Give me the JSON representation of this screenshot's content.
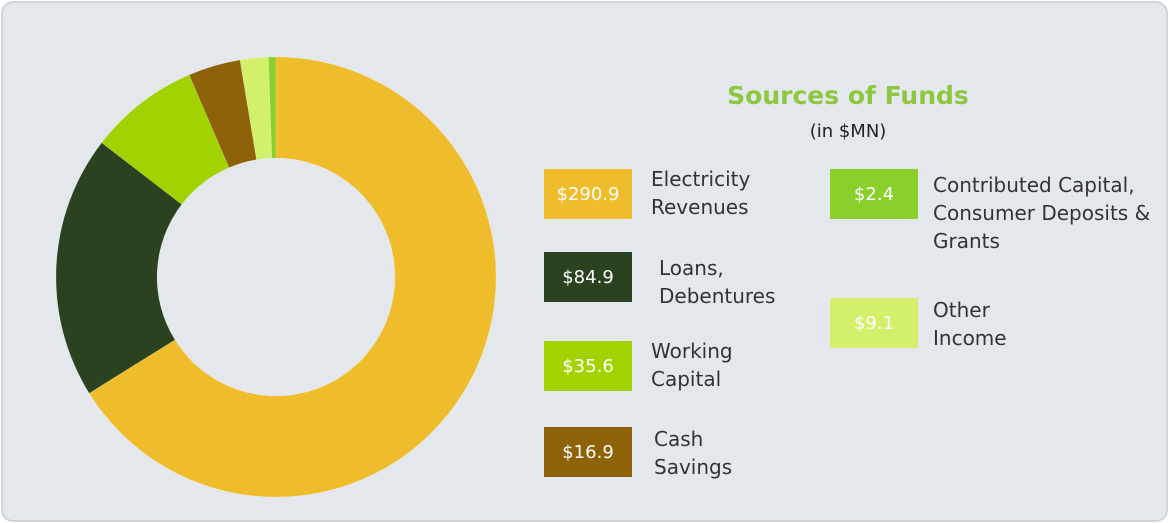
{
  "chart_data": {
    "type": "donut",
    "title": "Sources of Funds",
    "subtitle": "(in $MN)",
    "categories": [
      "Electricity Revenues",
      "Loans, Debentures",
      "Working Capital",
      "Cash Savings",
      "Other Income",
      "Contributed Capital, Consumer Deposits & Grants"
    ],
    "values": [
      290.9,
      84.9,
      35.6,
      16.9,
      9.1,
      2.4
    ],
    "value_labels": [
      "$290.9",
      "$84.9",
      "$35.6",
      "$16.9",
      "$9.1",
      "$2.4"
    ],
    "colors": [
      "#efbd2c",
      "#2a4220",
      "#a2d300",
      "#8e6208",
      "#d2f06a",
      "#8bcf2b"
    ]
  }
}
